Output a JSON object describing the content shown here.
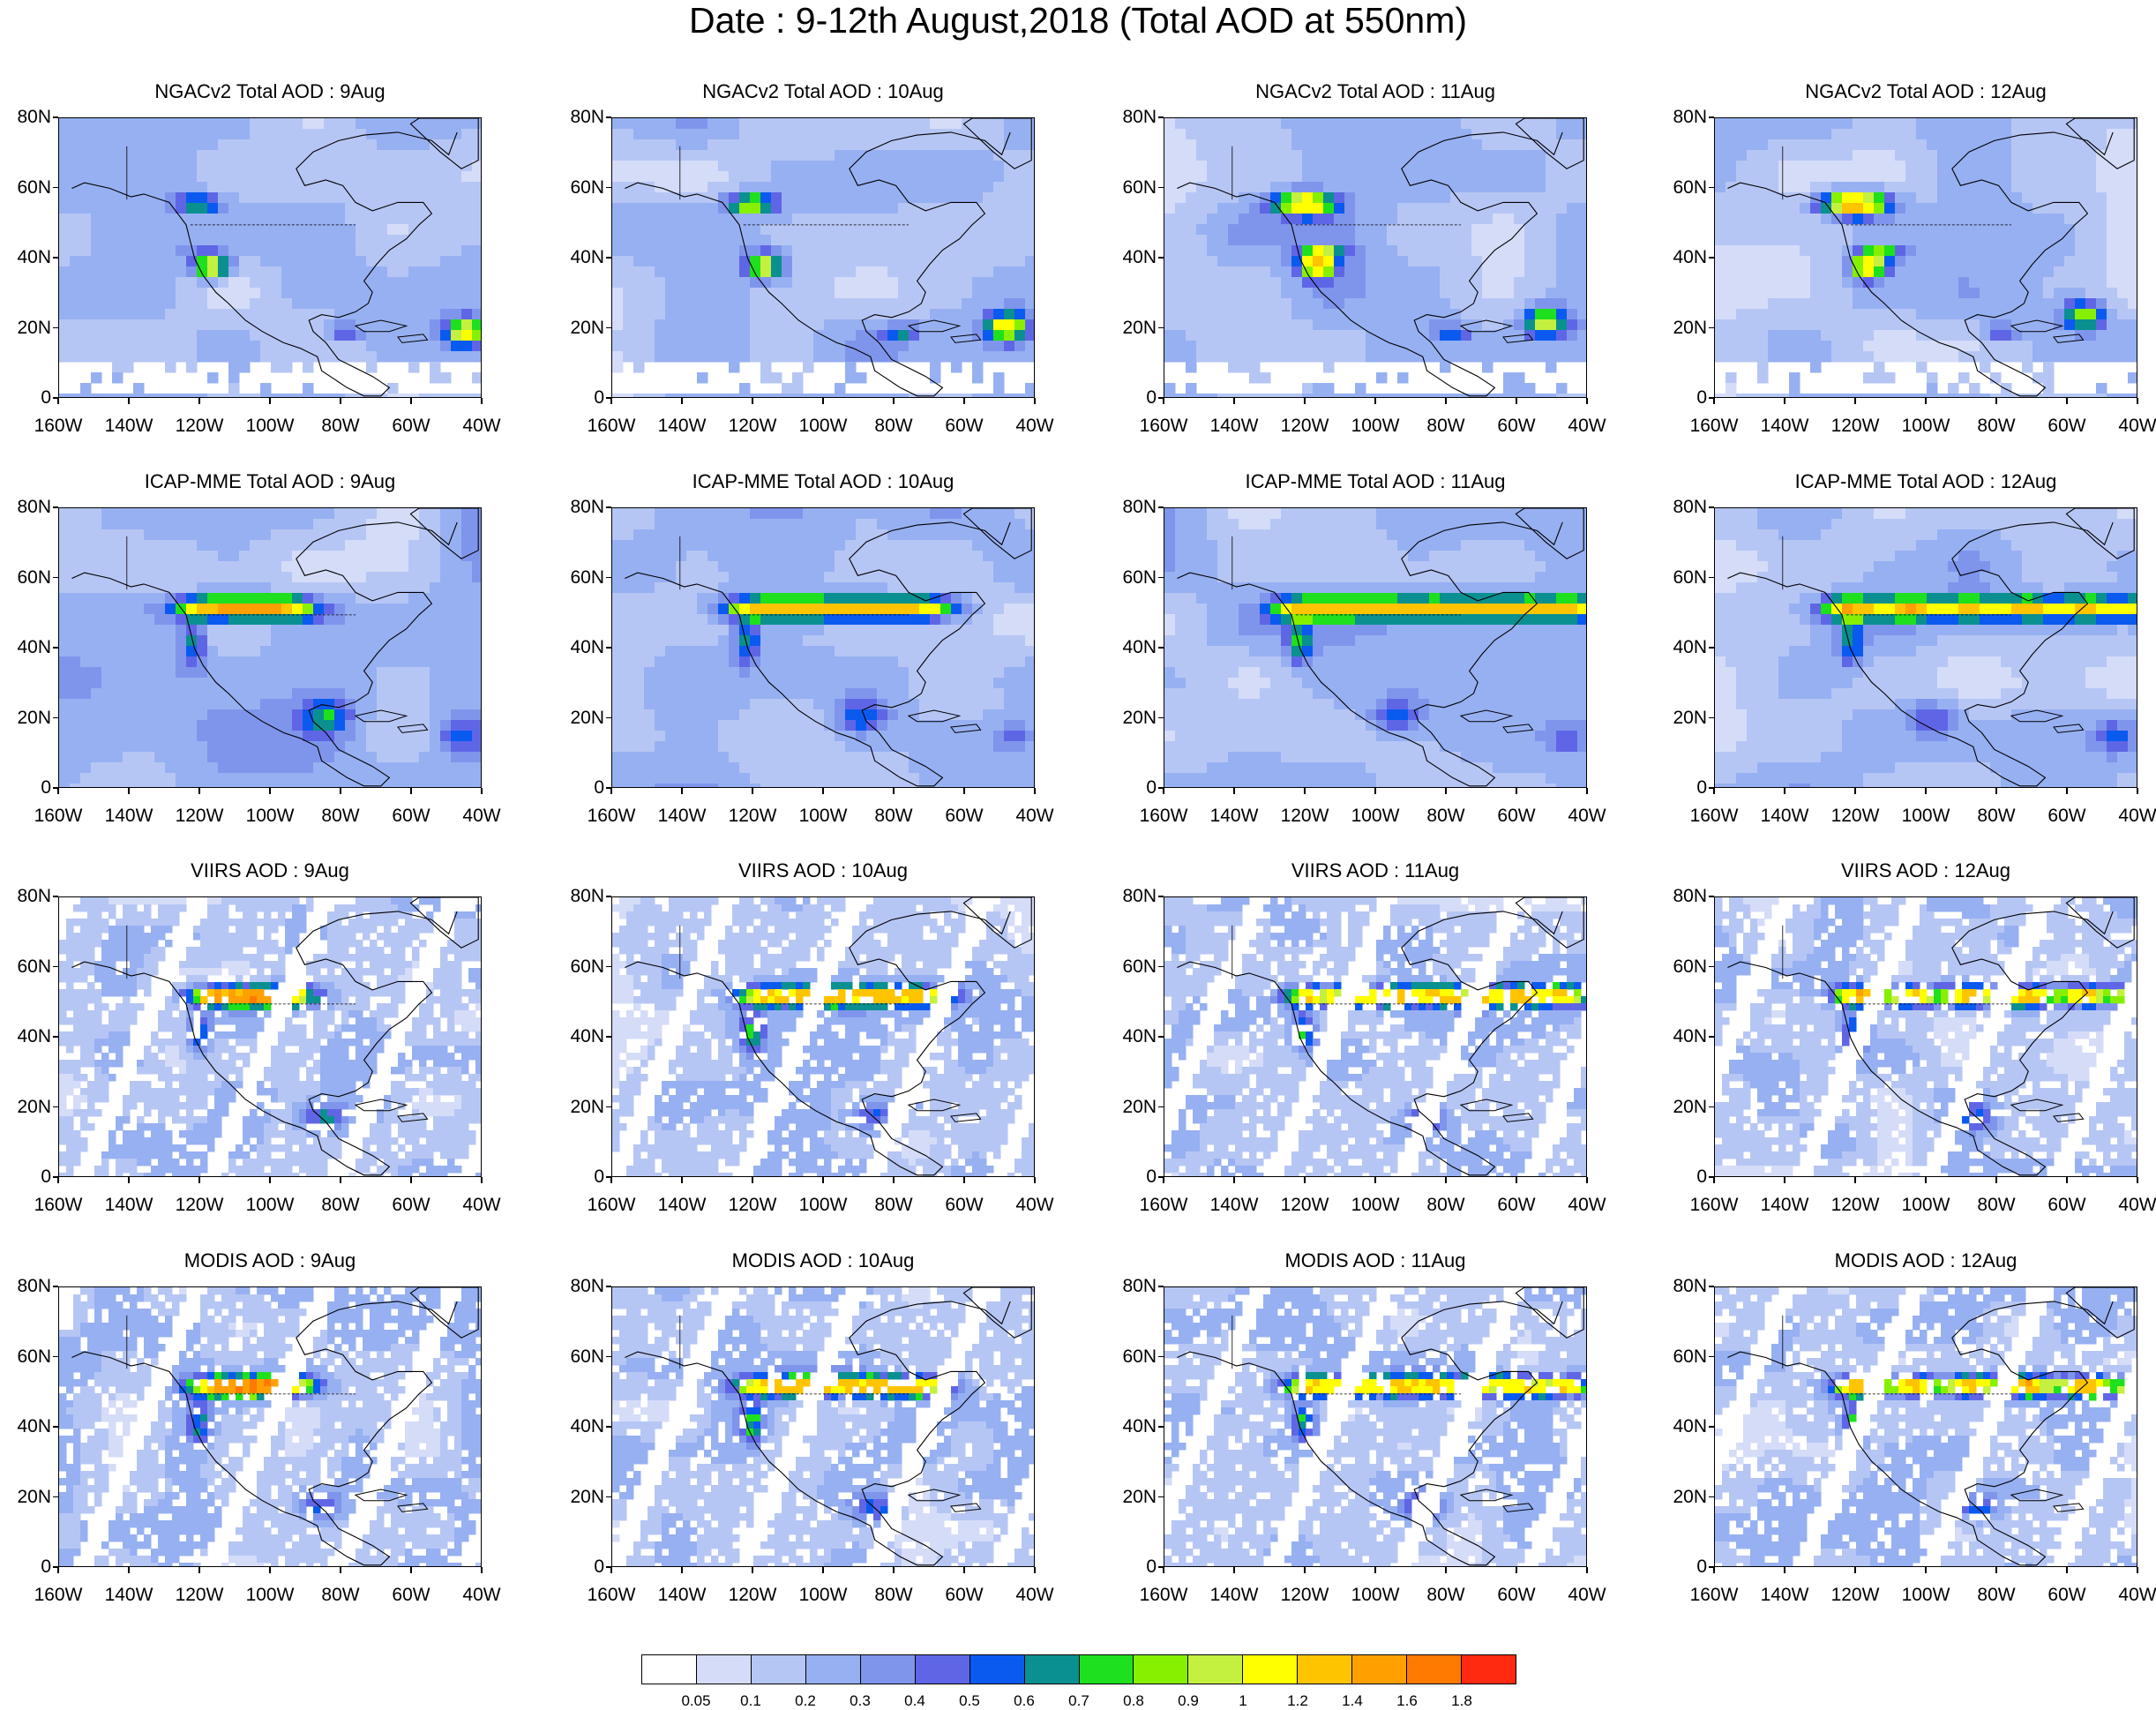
{
  "title": "Date : 9-12th August,2018 (Total AOD at 550nm)",
  "colorbar": {
    "labels": [
      "0.05",
      "0.1",
      "0.2",
      "0.3",
      "0.4",
      "0.5",
      "0.6",
      "0.7",
      "0.8",
      "0.9",
      "1",
      "1.2",
      "1.4",
      "1.6",
      "1.8"
    ],
    "colors": [
      "#ffffff",
      "#d4dcf8",
      "#b6c6f4",
      "#97b0f2",
      "#7f95ec",
      "#5f66e6",
      "#0a5af0",
      "#0a9090",
      "#1ee01e",
      "#86f000",
      "#c4f040",
      "#ffff00",
      "#ffc400",
      "#ffa000",
      "#ff7a00",
      "#ff2a10"
    ]
  },
  "axes": {
    "x_ticks": [
      "160W",
      "140W",
      "120W",
      "100W",
      "80W",
      "60W",
      "40W"
    ],
    "y_ticks": [
      "80N",
      "60N",
      "40N",
      "20N",
      "0"
    ]
  },
  "panels": [
    {
      "title": "NGACv2 Total AOD : 9Aug",
      "product": "ngac",
      "day": 0
    },
    {
      "title": "NGACv2 Total AOD : 10Aug",
      "product": "ngac",
      "day": 1
    },
    {
      "title": "NGACv2 Total AOD : 11Aug",
      "product": "ngac",
      "day": 2
    },
    {
      "title": "NGACv2 Total AOD : 12Aug",
      "product": "ngac",
      "day": 3
    },
    {
      "title": "ICAP-MME Total AOD : 9Aug",
      "product": "icap",
      "day": 0
    },
    {
      "title": "ICAP-MME Total AOD : 10Aug",
      "product": "icap",
      "day": 1
    },
    {
      "title": "ICAP-MME Total AOD : 11Aug",
      "product": "icap",
      "day": 2
    },
    {
      "title": "ICAP-MME Total AOD : 12Aug",
      "product": "icap",
      "day": 3
    },
    {
      "title": "VIIRS AOD : 9Aug",
      "product": "viirs",
      "day": 0
    },
    {
      "title": "VIIRS AOD : 10Aug",
      "product": "viirs",
      "day": 1
    },
    {
      "title": "VIIRS AOD : 11Aug",
      "product": "viirs",
      "day": 2
    },
    {
      "title": "VIIRS AOD : 12Aug",
      "product": "viirs",
      "day": 3
    },
    {
      "title": "MODIS AOD : 9Aug",
      "product": "modis",
      "day": 0
    },
    {
      "title": "MODIS AOD : 10Aug",
      "product": "modis",
      "day": 1
    },
    {
      "title": "MODIS AOD : 11Aug",
      "product": "modis",
      "day": 2
    },
    {
      "title": "MODIS AOD : 12Aug",
      "product": "modis",
      "day": 3
    }
  ]
}
